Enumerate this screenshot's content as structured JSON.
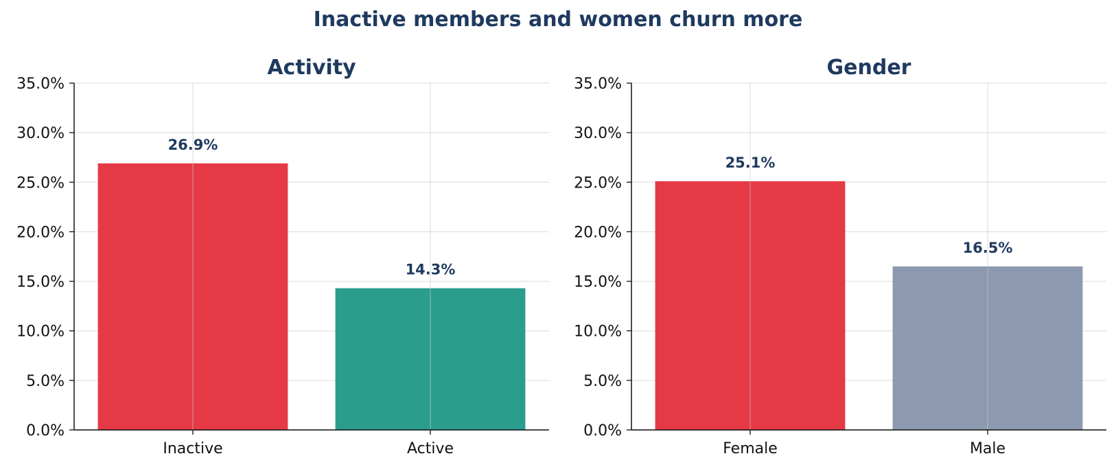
{
  "title": "Inactive members and women churn more",
  "colors": {
    "title": "#1f3a5f",
    "grid": "#e6e6e6",
    "axis": "#111111"
  },
  "chart_data": [
    {
      "type": "bar",
      "title": "Activity",
      "categories": [
        "Inactive",
        "Active"
      ],
      "values": [
        26.9,
        14.3
      ],
      "value_labels": [
        "26.9%",
        "14.3%"
      ],
      "colors": [
        "#e63946",
        "#2a9d8f"
      ],
      "ylim": [
        0,
        35
      ],
      "yticks": [
        "0.0%",
        "5.0%",
        "10.0%",
        "15.0%",
        "20.0%",
        "25.0%",
        "30.0%",
        "35.0%"
      ],
      "xlabel": "",
      "ylabel": "",
      "grid": true
    },
    {
      "type": "bar",
      "title": "Gender",
      "categories": [
        "Female",
        "Male"
      ],
      "values": [
        25.1,
        16.5
      ],
      "value_labels": [
        "25.1%",
        "16.5%"
      ],
      "colors": [
        "#e63946",
        "#8d99ae"
      ],
      "ylim": [
        0,
        35
      ],
      "yticks": [
        "0.0%",
        "5.0%",
        "10.0%",
        "15.0%",
        "20.0%",
        "25.0%",
        "30.0%",
        "35.0%"
      ],
      "xlabel": "",
      "ylabel": "",
      "grid": true
    }
  ]
}
